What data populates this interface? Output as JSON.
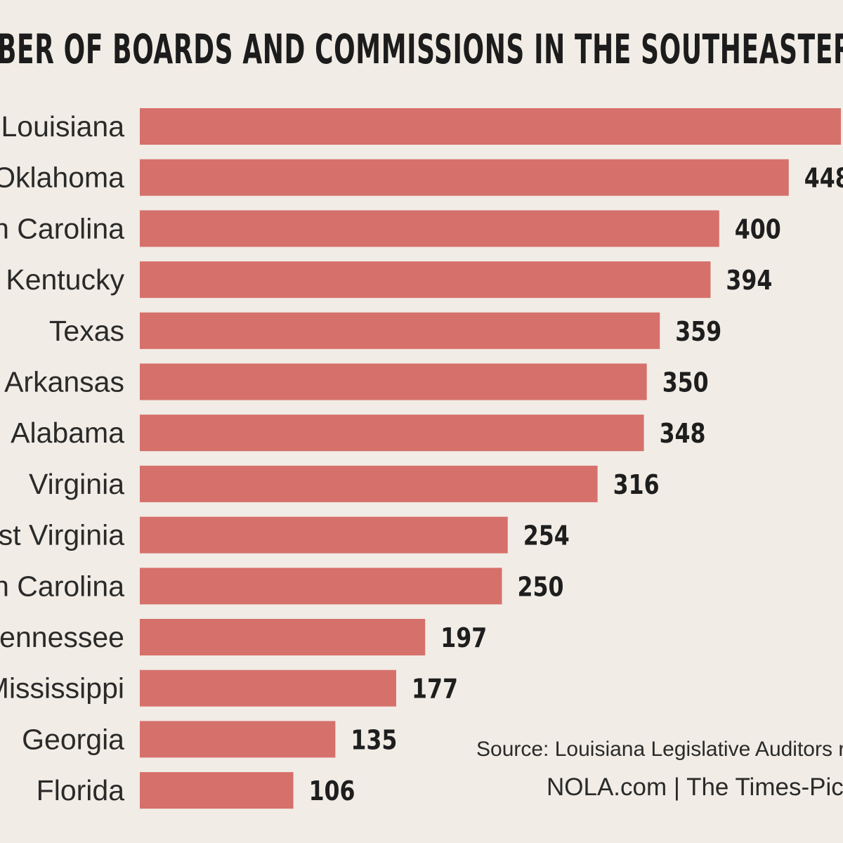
{
  "chart_data": {
    "type": "bar",
    "orientation": "horizontal",
    "title": "BER OF BOARDS AND COMMISSIONS IN THE SOUTHEASTERN U",
    "categories": [
      "Louisiana",
      "Oklahoma",
      "n Carolina",
      "Kentucky",
      "Texas",
      "Arkansas",
      "Alabama",
      "Virginia",
      "st Virginia",
      "n Carolina",
      "ennessee",
      "Mississippi",
      "Georgia",
      "Florida"
    ],
    "values": [
      484,
      448,
      400,
      394,
      359,
      350,
      348,
      316,
      254,
      250,
      197,
      177,
      135,
      106
    ],
    "value_labels": [
      "",
      "448",
      "400",
      "394",
      "359",
      "350",
      "348",
      "316",
      "254",
      "250",
      "197",
      "177",
      "135",
      "106"
    ],
    "bar_color": "#d6706b",
    "xlabel": "",
    "ylabel": "",
    "xlim": [
      0,
      484
    ],
    "grid": false
  },
  "source": "Source: Louisiana Legislative Auditors r",
  "credit": "NOLA.com | The Times-Pica"
}
